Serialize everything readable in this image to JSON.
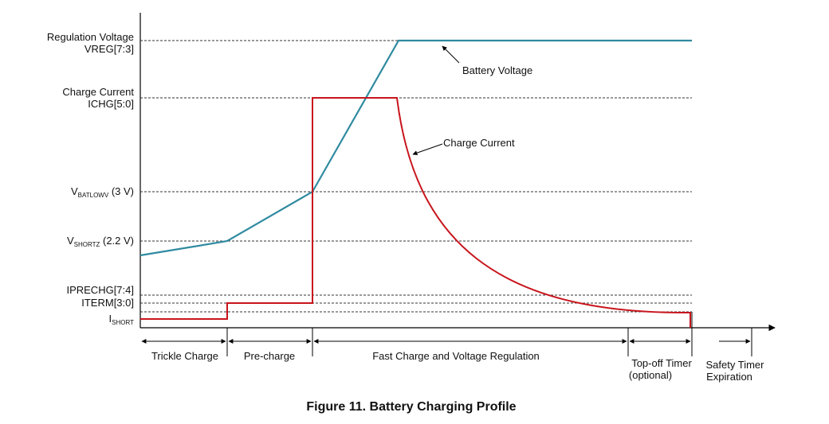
{
  "colors": {
    "voltage": "#2f8aa0",
    "current": "#c8141c",
    "axis": "#000000",
    "guide": "#333333"
  },
  "y_labels": {
    "regulation_voltage_line1": "Regulation Voltage",
    "regulation_voltage_line2": "VREG[7:3]",
    "charge_current_line1": "Charge Current",
    "charge_current_line2": "ICHG[5:0]",
    "vbatlowv_main": "V",
    "vbatlowv_sub": "BATLOWV",
    "vbatlowv_value": " (3 V)",
    "vshortz_main": "V",
    "vshortz_sub": "SHORTZ",
    "vshortz_value": " (2.2 V)",
    "iprechg": "IPRECHG[7:4]",
    "iterm": "ITERM[3:0]",
    "ishort_main": "I",
    "ishort_sub": "SHORT"
  },
  "annotations": {
    "battery_voltage": "Battery Voltage",
    "charge_current": "Charge Current"
  },
  "phases": {
    "trickle": "Trickle Charge",
    "precharge": "Pre-charge",
    "fast": "Fast Charge and Voltage Regulation",
    "topoff_line1": "Top-off Timer",
    "topoff_line2": "(optional)",
    "safety_line1": "Safety Timer",
    "safety_line2": "Expiration"
  },
  "caption": "Figure 11.  Battery Charging Profile"
}
